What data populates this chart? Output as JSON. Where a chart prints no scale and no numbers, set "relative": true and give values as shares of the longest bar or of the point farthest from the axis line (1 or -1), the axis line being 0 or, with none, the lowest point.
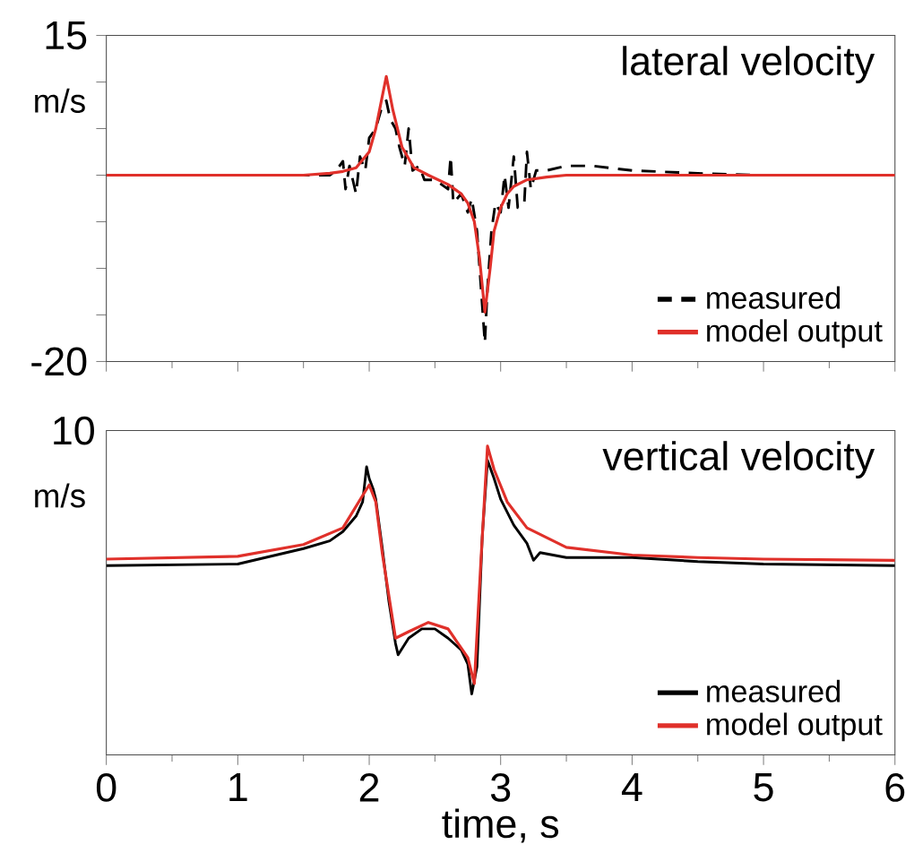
{
  "chart_data": [
    {
      "type": "line",
      "title": "lateral velocity",
      "ylabel": "m/s",
      "xlim": [
        0,
        6
      ],
      "xticks": [
        0,
        1,
        2,
        3,
        4,
        5,
        6
      ],
      "ylim": [
        -20,
        15
      ],
      "yticks": [
        -20,
        {
          "value": -15,
          "label": null
        },
        {
          "value": -10,
          "label": null
        },
        {
          "value": -5,
          "label": null
        },
        {
          "value": 0,
          "label": null
        },
        {
          "value": 5,
          "label": null
        },
        {
          "value": 10,
          "label": null
        },
        15
      ],
      "tick_labels": "y",
      "legend": "bottom right",
      "series": [
        {
          "name": "measured",
          "color": "#000000",
          "line_style": "dashed",
          "x": [
            0,
            0.5,
            1,
            1.5,
            1.7,
            1.75,
            1.8,
            1.82,
            1.85,
            1.9,
            1.93,
            1.97,
            2.0,
            2.05,
            2.1,
            2.13,
            2.16,
            2.2,
            2.23,
            2.27,
            2.3,
            2.33,
            2.38,
            2.42,
            2.5,
            2.55,
            2.6,
            2.62,
            2.64,
            2.7,
            2.75,
            2.78,
            2.82,
            2.86,
            2.88,
            2.9,
            2.93,
            2.96,
            3.0,
            3.03,
            3.06,
            3.1,
            3.13,
            3.18,
            3.2,
            3.23,
            3.27,
            3.35,
            3.5,
            3.7,
            4.0,
            4.5,
            5,
            5.5,
            6
          ],
          "values": [
            0,
            0,
            0,
            0,
            0,
            0.5,
            1.5,
            -1.5,
            1,
            -2,
            2,
            0.5,
            4,
            5,
            7.5,
            8,
            6,
            5,
            3,
            1,
            5,
            0.5,
            1,
            -0.5,
            -0.5,
            -1,
            -1.5,
            2,
            -3,
            -2,
            -4,
            -2.5,
            -6,
            -14,
            -18,
            -12,
            -6,
            -3,
            -4,
            0,
            -3.5,
            2,
            -3.5,
            -3,
            2.5,
            -1.5,
            0.5,
            0.5,
            1,
            1,
            0.5,
            0.2,
            0,
            0,
            0
          ]
        },
        {
          "name": "model output",
          "color": "#e0302a",
          "line_style": "solid",
          "x": [
            0,
            1,
            1.5,
            1.7,
            1.8,
            1.9,
            2.0,
            2.05,
            2.1,
            2.13,
            2.18,
            2.25,
            2.34,
            2.45,
            2.6,
            2.7,
            2.75,
            2.8,
            2.84,
            2.88,
            2.92,
            2.95,
            3.0,
            3.05,
            3.1,
            3.2,
            3.35,
            3.5,
            4,
            5,
            6
          ],
          "values": [
            0,
            0,
            0,
            0.2,
            0.4,
            0.8,
            2.5,
            5,
            8.5,
            10.6,
            7,
            3,
            0.8,
            0,
            -1,
            -2,
            -3,
            -5,
            -9,
            -14.7,
            -10,
            -6,
            -3.5,
            -2,
            -1.2,
            -0.5,
            -0.2,
            0,
            0,
            0,
            0
          ]
        }
      ]
    },
    {
      "type": "line",
      "title": "vertical velocity",
      "ylabel": "m/s",
      "xlabel": "time, s",
      "xlim": [
        0,
        6
      ],
      "xticks": [
        0,
        1,
        2,
        3,
        4,
        5,
        6
      ],
      "relative": true,
      "annotations": [
        "10"
      ],
      "legend": "bottom right",
      "series": [
        {
          "name": "measured",
          "color": "#000000",
          "line_style": "solid",
          "x": [
            0,
            1,
            1.5,
            1.7,
            1.8,
            1.9,
            1.95,
            1.98,
            2.0,
            2.03,
            2.05,
            2.1,
            2.15,
            2.2,
            2.22,
            2.3,
            2.4,
            2.5,
            2.6,
            2.7,
            2.75,
            2.78,
            2.82,
            2.86,
            2.9,
            2.95,
            3.0,
            3.1,
            3.2,
            3.25,
            3.3,
            3.5,
            4,
            4.5,
            5,
            6
          ],
          "values": [
            0.613,
            0.618,
            0.668,
            0.693,
            0.723,
            0.773,
            0.819,
            0.933,
            0.895,
            0.861,
            0.828,
            0.668,
            0.496,
            0.361,
            0.324,
            0.378,
            0.408,
            0.408,
            0.378,
            0.34,
            0.294,
            0.197,
            0.286,
            0.706,
            0.954,
            0.895,
            0.828,
            0.744,
            0.685,
            0.63,
            0.655,
            0.639,
            0.639,
            0.626,
            0.618,
            0.613
          ]
        },
        {
          "name": "model output",
          "color": "#e0302a",
          "line_style": "solid",
          "x": [
            0,
            1,
            1.5,
            1.8,
            1.95,
            2.0,
            2.05,
            2.1,
            2.2,
            2.3,
            2.45,
            2.6,
            2.75,
            2.8,
            2.85,
            2.9,
            2.95,
            3.05,
            3.2,
            3.5,
            4,
            4.5,
            5,
            6
          ],
          "values": [
            0.634,
            0.643,
            0.681,
            0.735,
            0.84,
            0.874,
            0.819,
            0.651,
            0.378,
            0.399,
            0.429,
            0.408,
            0.315,
            0.231,
            0.63,
            1,
            0.924,
            0.819,
            0.735,
            0.672,
            0.647,
            0.639,
            0.634,
            0.63
          ]
        }
      ]
    }
  ]
}
